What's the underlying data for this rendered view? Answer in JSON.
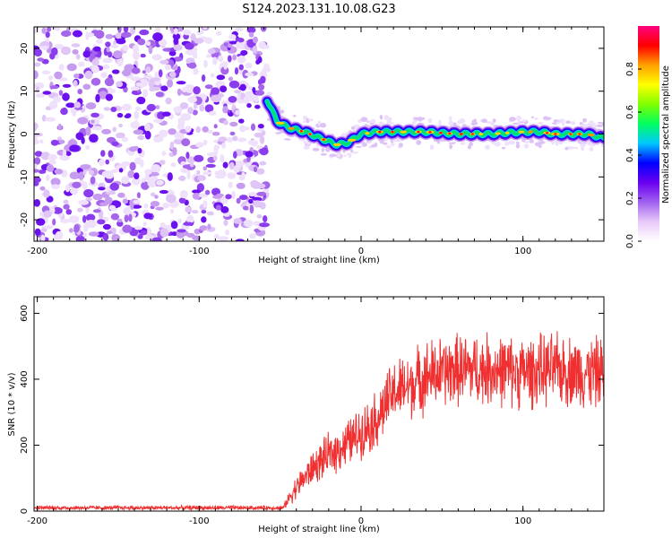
{
  "title": "S124.2023.131.10.08.G23",
  "chart_data": [
    {
      "type": "heatmap",
      "xlabel": "Height of straight line (km)",
      "ylabel": "Frequency (Hz)",
      "xlim": [
        -202,
        150
      ],
      "ylim": [
        -25,
        25
      ],
      "xticks": [
        -200,
        -100,
        0,
        100
      ],
      "yticks": [
        -20,
        -10,
        0,
        10,
        20
      ],
      "noise_region_x": [
        -202,
        -58
      ],
      "signal_track": {
        "x": [
          -58,
          -52,
          -45,
          -35,
          -25,
          -15,
          -8,
          0,
          10,
          20,
          40,
          60,
          80,
          100,
          110,
          120,
          140,
          150
        ],
        "freq": [
          8,
          3,
          1.5,
          0.5,
          -1,
          -2.5,
          -2,
          0,
          0.5,
          0.5,
          0.5,
          0,
          0,
          0.5,
          0.5,
          0,
          0,
          -1
        ]
      },
      "colorbar": {
        "label": "Normalized spectral amplitude",
        "range": [
          0,
          1
        ],
        "ticks": [
          "0.0",
          "0.2",
          "0.4",
          "0.6",
          "0.8"
        ],
        "colors": [
          "#ffffff",
          "#e8c8f8",
          "#a060f0",
          "#6a00f0",
          "#0000ff",
          "#00c8ff",
          "#00ff60",
          "#80ff00",
          "#ffff00",
          "#ffa000",
          "#ff0000",
          "#ff0080"
        ]
      }
    },
    {
      "type": "line",
      "xlabel": "Height of straight line (km)",
      "ylabel": "SNR (10 * v/v)",
      "xlim": [
        -202,
        150
      ],
      "ylim": [
        0,
        650
      ],
      "xticks": [
        -200,
        -100,
        0,
        100
      ],
      "yticks": [
        0,
        200,
        400,
        600
      ],
      "color": "#f03030",
      "envelope": {
        "x": [
          -202,
          -48,
          -42,
          -30,
          -20,
          -10,
          0,
          10,
          20,
          30,
          40,
          50,
          60,
          80,
          100,
          120,
          140,
          150
        ],
        "mean": [
          10,
          10,
          60,
          130,
          170,
          200,
          240,
          280,
          360,
          380,
          410,
          420,
          430,
          430,
          420,
          430,
          420,
          420
        ],
        "spread": [
          5,
          5,
          25,
          40,
          50,
          55,
          60,
          70,
          75,
          80,
          85,
          85,
          85,
          85,
          85,
          85,
          85,
          85
        ]
      }
    }
  ]
}
